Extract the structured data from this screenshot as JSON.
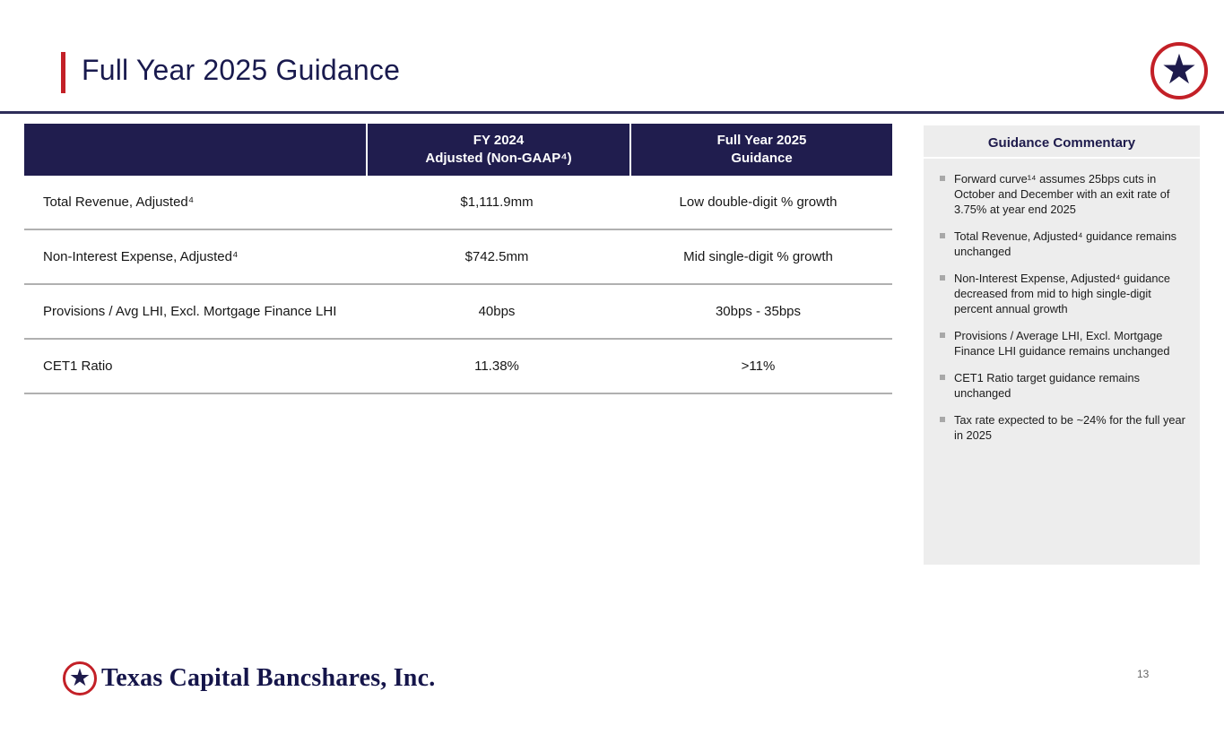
{
  "header": {
    "title": "Full Year 2025 Guidance"
  },
  "icons": {
    "star": "★"
  },
  "table": {
    "columns": [
      {
        "line1": "FY 2024",
        "line2": "Adjusted (Non-GAAP⁴)"
      },
      {
        "line1": "Full Year 2025",
        "line2": "Guidance"
      }
    ],
    "rows": [
      {
        "label": "Total Revenue, Adjusted⁴",
        "fy2024": "$1,111.9mm",
        "fy2025": "Low double-digit % growth"
      },
      {
        "label": "Non-Interest Expense, Adjusted⁴",
        "fy2024": "$742.5mm",
        "fy2025": "Mid single-digit % growth"
      },
      {
        "label": "Provisions / Avg LHI, Excl. Mortgage Finance LHI",
        "fy2024": "40bps",
        "fy2025": "30bps - 35bps"
      },
      {
        "label": "CET1 Ratio",
        "fy2024": "11.38%",
        "fy2025": ">11%"
      }
    ]
  },
  "commentary": {
    "title": "Guidance Commentary",
    "bullets": [
      "Forward curve¹⁴ assumes 25bps cuts in October and December with an exit rate of 3.75% at year end 2025",
      "Total Revenue, Adjusted⁴ guidance remains unchanged",
      "Non-Interest Expense, Adjusted⁴ guidance decreased from mid to high single-digit percent annual growth",
      "Provisions / Average LHI, Excl. Mortgage Finance LHI guidance remains unchanged",
      "CET1 Ratio target guidance remains unchanged",
      "Tax rate expected to be ~24% for the full year in 2025"
    ]
  },
  "footer": {
    "company": "Texas Capital Bancshares, Inc.",
    "page_number": "13"
  },
  "colors": {
    "navy": "#1e1b4c",
    "red": "#c32027",
    "sidebar_bg": "#ededed",
    "divider_gray": "#b0b0b0"
  }
}
